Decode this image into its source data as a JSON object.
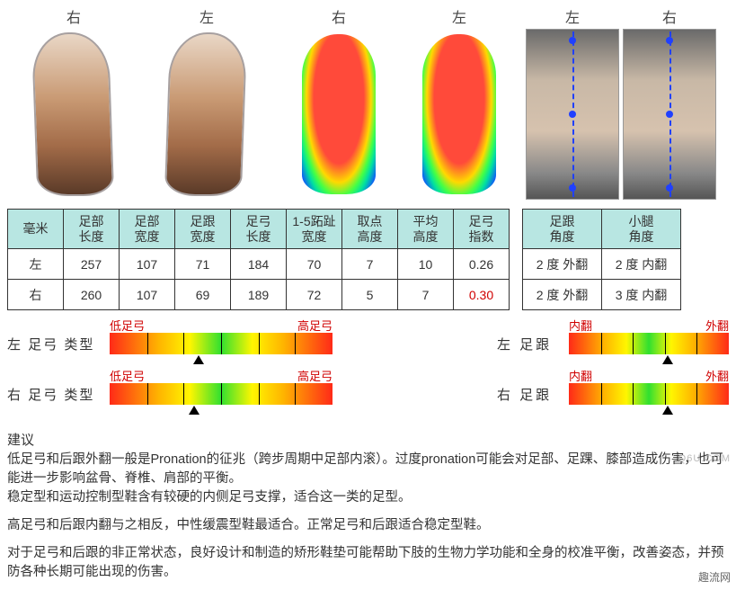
{
  "labels": {
    "right": "右",
    "left": "左",
    "mm": "毫米"
  },
  "tableMain": {
    "headers": [
      "足部\n长度",
      "足部\n宽度",
      "足跟\n宽度",
      "足弓\n长度",
      "1-5跖趾\n宽度",
      "取点\n高度",
      "平均\n高度",
      "足弓\n指数"
    ],
    "rows": {
      "left": [
        "257",
        "107",
        "71",
        "184",
        "70",
        "7",
        "10",
        "0.26"
      ],
      "right": [
        "260",
        "107",
        "69",
        "189",
        "72",
        "5",
        "7",
        "0.30"
      ]
    },
    "redCell": "0.30"
  },
  "tableSide": {
    "headers": [
      "足跟\n角度",
      "小腿\n角度"
    ],
    "rows": {
      "left": [
        "2 度 外翻",
        "2 度 内翻"
      ],
      "right": [
        "2 度 外翻",
        "3 度 内翻"
      ]
    }
  },
  "bars": {
    "arch": {
      "leftLabel": "左 足弓 类型",
      "rightLabel": "右 足弓 类型",
      "low": "低足弓",
      "high": "高足弓",
      "leftMarker": 0.4,
      "rightMarker": 0.38,
      "ticks": [
        0.17,
        0.33,
        0.5,
        0.67,
        0.83
      ]
    },
    "heel": {
      "leftLabel": "左 足跟",
      "rightLabel": "右 足跟",
      "in": "内翻",
      "out": "外翻",
      "leftMarker": 0.62,
      "rightMarker": 0.62,
      "ticks": [
        0.2,
        0.4,
        0.6,
        0.8
      ]
    }
  },
  "advice": {
    "title": "建议",
    "p1": "低足弓和后跟外翻一般是Pronation的征兆（跨步周期中足部内滚）。过度pronation可能会对足部、足踝、膝部造成伤害，也可能进一步影响盆骨、脊椎、肩部的平衡。\n稳定型和运动控制型鞋含有较硬的内侧足弓支撑，适合这一类的足型。",
    "p2": "高足弓和后跟内翻与之相反，中性缓震型鞋最适合。正常足弓和后跟适合稳定型鞋。",
    "p3": "对于足弓和后跟的非正常状态，良好设计和制造的矫形鞋垫可能帮助下肢的生物力学功能和全身的校准平衡，改善姿态，并预防各种长期可能出现的伤害。"
  },
  "watermark": "Q6U.COM",
  "site": "趣流网",
  "colors": {
    "headerBg": "#b8e6e2",
    "red": "#d00000"
  }
}
